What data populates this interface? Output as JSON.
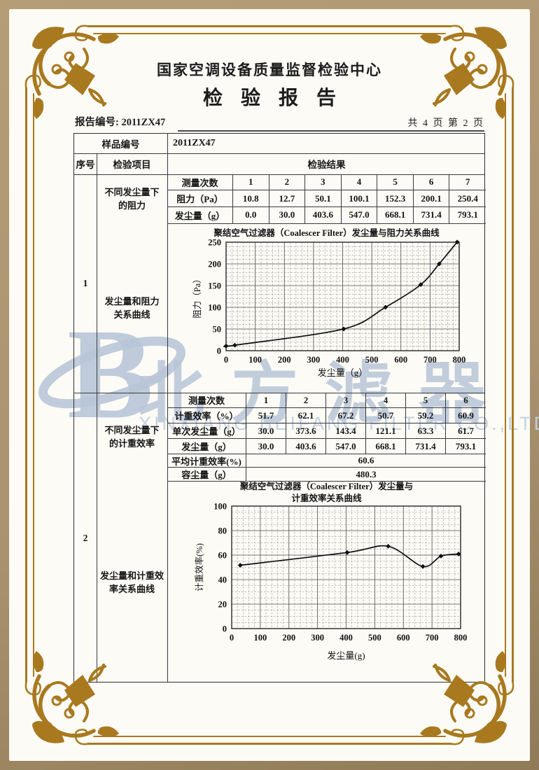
{
  "header": {
    "org": "国家空调设备质量监督检验中心",
    "title": "检验报告"
  },
  "meta": {
    "report_no": "报告编号: 2011ZX47",
    "pages": "共 4 页 第 2 页"
  },
  "sample": {
    "label": "样品编号",
    "value": "2011ZX47"
  },
  "table_header": {
    "seq": "序号",
    "item": "检验项目",
    "result": "检验结果"
  },
  "sections": [
    {
      "seq": "1",
      "item_first": "不同发尘量下\n的阻力",
      "item_curve": "发尘量和阻力\n关系曲线",
      "meas_label": "测量次数",
      "meas_numbers": [
        "1",
        "2",
        "3",
        "4",
        "5",
        "6",
        "7"
      ],
      "rows": [
        {
          "label": "阻力（Pa）",
          "values": [
            "10.8",
            "12.7",
            "50.1",
            "100.1",
            "152.3",
            "200.1",
            "250.4"
          ]
        },
        {
          "label": "发尘量（g）",
          "values": [
            "0.0",
            "30.0",
            "403.6",
            "547.0",
            "668.1",
            "731.4",
            "793.1"
          ]
        }
      ]
    },
    {
      "seq": "2",
      "item_first": "不同发尘量下\n的计重效率",
      "item_curve": "发尘量和计重效\n率关系曲线",
      "meas_label": "测量次数",
      "meas_numbers": [
        "1",
        "2",
        "3",
        "4",
        "5",
        "6"
      ],
      "rows": [
        {
          "label": "计重效率（%）",
          "values": [
            "51.7",
            "62.1",
            "67.2",
            "50.7",
            "59.2",
            "60.9"
          ]
        },
        {
          "label": "单次发尘量（g）",
          "values": [
            "30.0",
            "373.6",
            "143.4",
            "121.1",
            "63.3",
            "61.7"
          ]
        },
        {
          "label": "发尘量（g）",
          "values": [
            "30.0",
            "403.6",
            "547.0",
            "668.1",
            "731.4",
            "793.1"
          ]
        }
      ],
      "summary": [
        {
          "label": "平均计重效率(%)",
          "value": "60.6"
        },
        {
          "label": "容尘量（g）",
          "value": "480.3"
        }
      ]
    }
  ],
  "chart_data": [
    {
      "type": "line",
      "title": "聚结空气过滤器（Coalescer Filter）发尘量与阻力关系曲线",
      "xlabel": "发尘量（g）",
      "ylabel": "阻力（Pa）",
      "xlim": [
        0,
        800
      ],
      "ylim": [
        0,
        250
      ],
      "xticks": [
        0,
        100,
        200,
        300,
        400,
        500,
        600,
        700,
        800
      ],
      "yticks": [
        0,
        50,
        100,
        150,
        200,
        250
      ],
      "x": [
        0,
        30,
        403.6,
        547.0,
        668.1,
        731.4,
        793.1
      ],
      "y": [
        10.8,
        12.7,
        50.1,
        100.1,
        152.3,
        200.1,
        250.4
      ],
      "grid": true,
      "legend": "none"
    },
    {
      "type": "line",
      "title": "聚结空气过滤器（Coalescer Filter）发尘量与\n计重效率关系曲线",
      "xlabel": "发尘量(g)",
      "ylabel": "计重效率(%)",
      "xlim": [
        0,
        800
      ],
      "ylim": [
        0,
        100
      ],
      "xticks": [
        0,
        100,
        200,
        300,
        400,
        500,
        600,
        700,
        800
      ],
      "yticks": [
        0,
        20,
        40,
        60,
        80,
        100
      ],
      "x": [
        30,
        403.6,
        547.0,
        668.1,
        731.4,
        793.1
      ],
      "y": [
        51.7,
        62.1,
        67.2,
        50.7,
        59.2,
        60.9
      ],
      "grid": true,
      "legend": "none"
    }
  ],
  "watermark": {
    "logo_letter": "B",
    "cn": "北方滤器",
    "en": "XINXIANG BEIFANG FILTER CO.,LTD",
    "color": "#b9c6d8"
  },
  "colors": {
    "frame_gold": "#a8791f",
    "frame_tan": "#ab9370",
    "table_line": "#3a3a3a"
  }
}
